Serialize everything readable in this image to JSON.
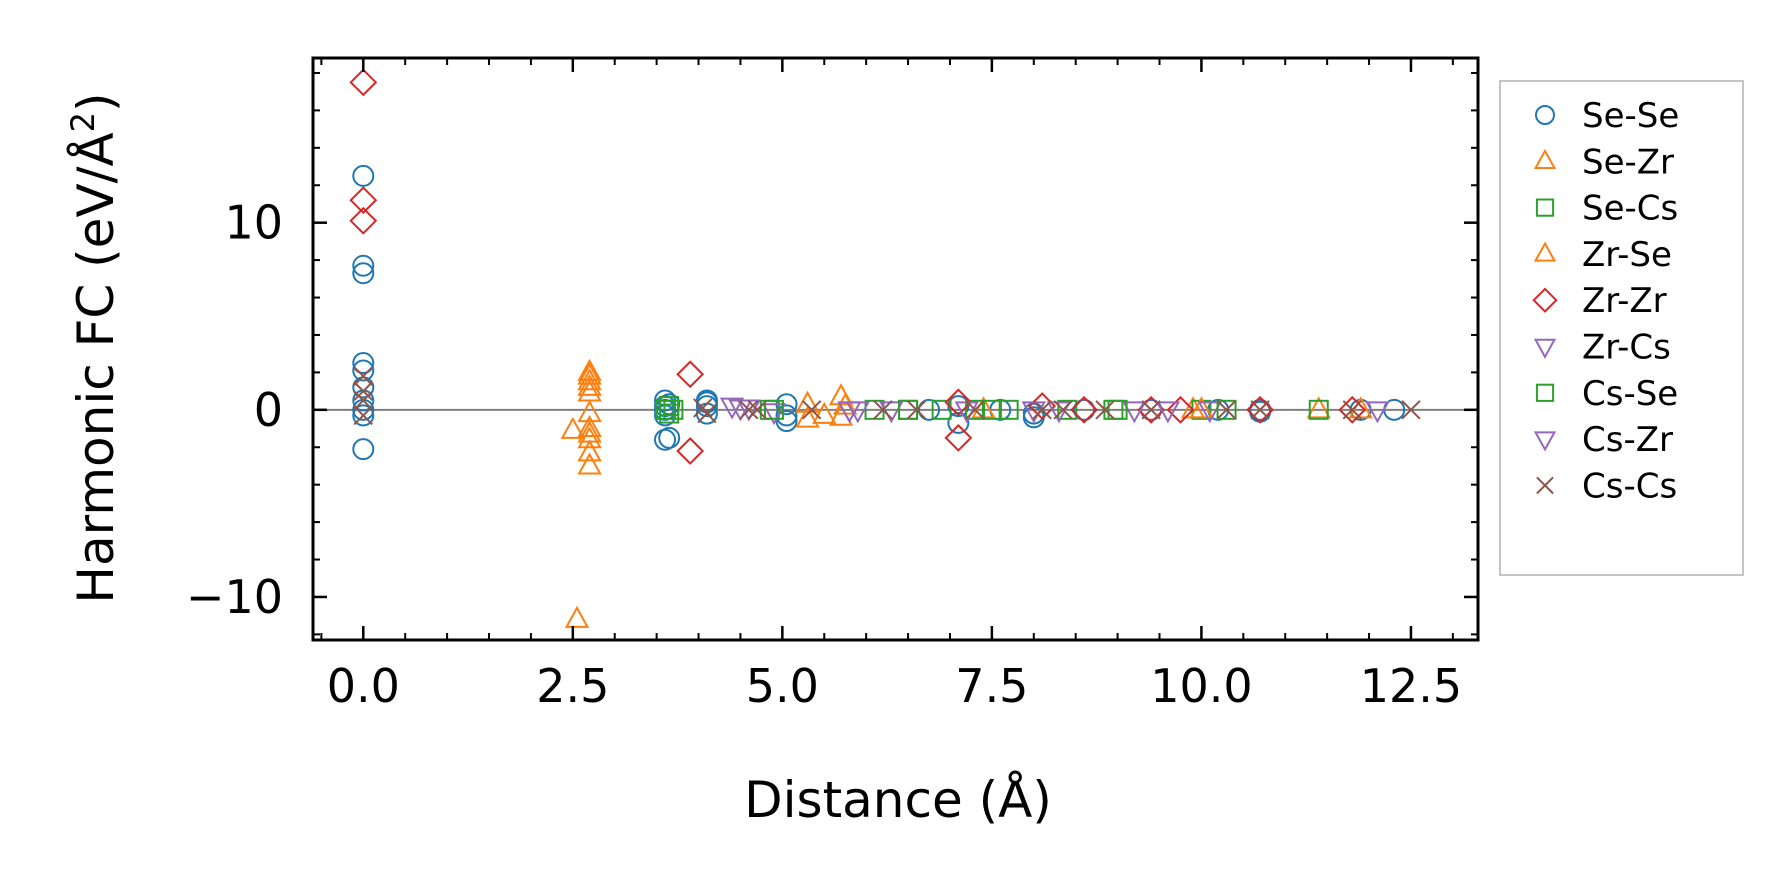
{
  "chart_data": {
    "type": "scatter",
    "title": "",
    "xlabel": "Distance (Å)",
    "ylabel_main": "Harmonic FC (eV/Å",
    "ylabel_sup": "2",
    "ylabel_close": ")",
    "xlim": [
      -0.6,
      13.3
    ],
    "ylim": [
      -12.3,
      18.8
    ],
    "xticks": [
      0,
      2.5,
      5,
      7.5,
      10,
      12.5
    ],
    "xtick_labels": [
      "0.0",
      "2.5",
      "5.0",
      "7.5",
      "10.0",
      "12.5"
    ],
    "yticks": [
      -10,
      0,
      10
    ],
    "ytick_labels": [
      "−10",
      "0",
      "10"
    ],
    "reference_line_y": 0,
    "legend_position": "outside-right",
    "series": [
      {
        "name": "Se-Se",
        "marker": "circle",
        "color": "#1f77b4",
        "x": [
          0,
          0,
          0,
          0,
          0,
          0,
          0,
          0,
          0,
          0,
          3.6,
          3.6,
          3.6,
          3.6,
          3.6,
          3.65,
          3.65,
          4.1,
          4.1,
          4.1,
          4.1,
          5.05,
          5.05,
          5.05,
          6.75,
          7.1,
          7.1,
          7.6,
          8.0,
          8.0,
          8.6,
          9.4,
          10.2,
          10.7,
          10.7,
          11.9,
          12.3
        ],
        "y": [
          12.5,
          7.7,
          7.3,
          2.5,
          2.1,
          1.2,
          0.5,
          0,
          -0.3,
          -2.1,
          0.5,
          0.2,
          0,
          -0.3,
          -1.6,
          -1.5,
          0.3,
          0.5,
          0.2,
          -0.2,
          0.4,
          0.3,
          -0.3,
          -0.6,
          0,
          -0.7,
          0.2,
          0,
          -0.4,
          -0.2,
          0,
          0,
          0,
          0,
          -0.1,
          0,
          0
        ]
      },
      {
        "name": "Se-Zr",
        "marker": "triangle-up",
        "color": "#ff7f0e",
        "x": [
          2.55,
          2.7,
          2.7,
          2.7,
          2.7,
          2.7,
          2.7,
          2.7,
          5.3,
          5.3,
          5.7,
          5.7,
          7.4,
          9.9,
          11.4,
          11.9
        ],
        "y": [
          -11.2,
          2,
          1.5,
          0.9,
          -0.2,
          -1,
          -1.6,
          -3,
          0.3,
          -0.5,
          0.7,
          -0.4,
          0,
          0,
          0,
          0
        ]
      },
      {
        "name": "Se-Cs",
        "marker": "square",
        "color": "#2ca02c",
        "x": [
          3.65,
          3.65,
          3.7,
          4.85,
          6.1,
          6.5,
          6.9,
          7.3,
          7.7,
          8.4,
          8.95,
          10.0,
          11.4
        ],
        "y": [
          0.2,
          -0.2,
          0,
          0,
          0,
          0,
          0,
          0,
          0,
          0,
          0,
          0,
          0
        ]
      },
      {
        "name": "Zr-Se",
        "marker": "triangle-up",
        "color": "#ff7f0e",
        "x": [
          2.5,
          2.7,
          2.7,
          2.7,
          2.7,
          5.5,
          5.75,
          10.0
        ],
        "y": [
          -1.1,
          1.8,
          1.2,
          -1.3,
          -2.3,
          -0.3,
          0.2,
          0
        ]
      },
      {
        "name": "Zr-Zr",
        "marker": "diamond",
        "color": "#d62728",
        "x": [
          0,
          0,
          0,
          3.9,
          3.9,
          7.1,
          7.1,
          8.1,
          8.6,
          9.4,
          9.75,
          10.7,
          11.8
        ],
        "y": [
          17.5,
          11.2,
          10.1,
          1.9,
          -2.2,
          0.4,
          -1.5,
          0.2,
          0,
          0,
          0,
          0,
          0
        ]
      },
      {
        "name": "Zr-Cs",
        "marker": "triangle-down",
        "color": "#9467bd",
        "x": [
          4.4,
          4.6,
          4.9,
          5.8,
          6.3,
          7.2,
          8.3,
          9.2,
          10.1,
          12.1
        ],
        "y": [
          0.2,
          0.1,
          -0.1,
          0,
          0,
          0,
          0,
          0,
          0,
          0
        ]
      },
      {
        "name": "Cs-Se",
        "marker": "square",
        "color": "#2ca02c",
        "x": [
          3.6,
          4.9,
          6.5,
          7.5,
          9.0,
          10.3
        ],
        "y": [
          0,
          0,
          0,
          0,
          0,
          0
        ]
      },
      {
        "name": "Cs-Zr",
        "marker": "triangle-down",
        "color": "#9467bd",
        "x": [
          4.5,
          5.9,
          8.0,
          9.6
        ],
        "y": [
          0.1,
          0,
          0,
          0
        ]
      },
      {
        "name": "Cs-Cs",
        "marker": "x",
        "color": "#8c564b",
        "x": [
          0,
          0,
          0,
          0,
          4.05,
          4.1,
          4.6,
          4.7,
          5.35,
          6.2,
          6.6,
          7.3,
          8.1,
          8.35,
          8.85,
          9.4,
          10.3,
          10.7,
          11.8,
          12.5
        ],
        "y": [
          1.8,
          1.0,
          0.5,
          -0.3,
          0.1,
          -0.2,
          0,
          0,
          0,
          0,
          0,
          0,
          0,
          0,
          0,
          0,
          0,
          0,
          0,
          0
        ]
      }
    ]
  }
}
